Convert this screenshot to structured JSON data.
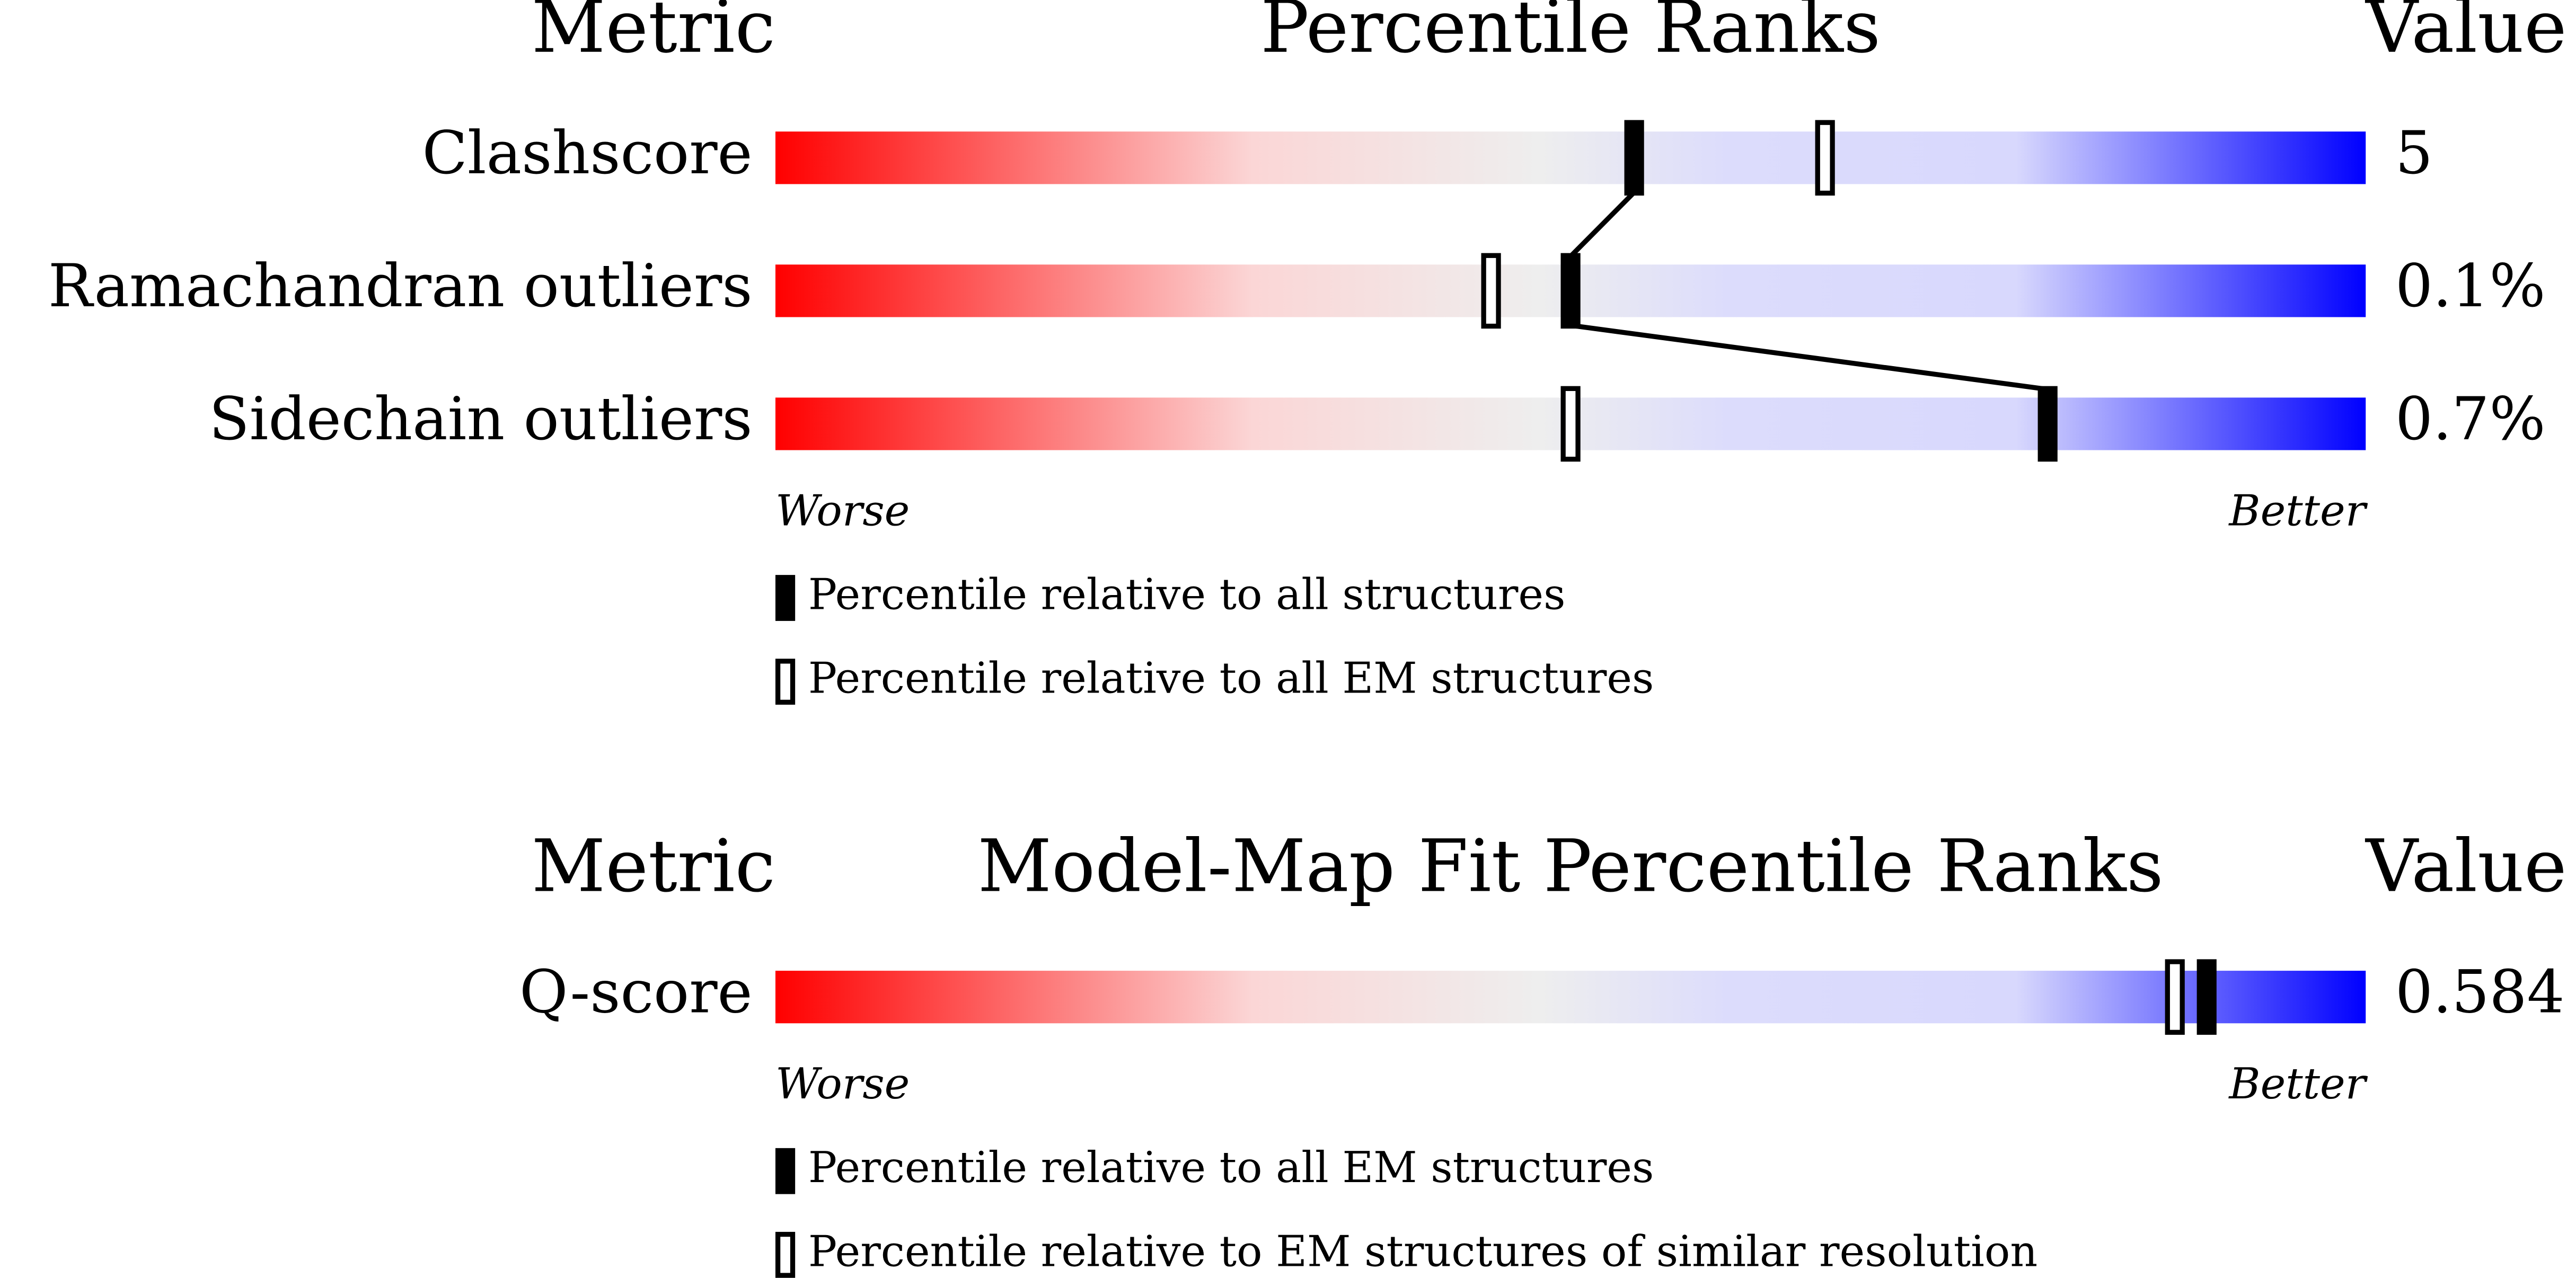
{
  "chart_data": [
    {
      "type": "slider",
      "header": {
        "metric": "Metric",
        "title": "Percentile Ranks",
        "value": "Value"
      },
      "categories": [
        "Clashscore",
        "Ramachandran outliers",
        "Sidechain outliers"
      ],
      "metric_values": [
        "5",
        "0.1%",
        "0.7%"
      ],
      "series": [
        {
          "name": "Percentile relative to all structures",
          "style": "filled",
          "connect": true,
          "color": "#000000",
          "values": [
            54,
            50,
            80
          ]
        },
        {
          "name": "Percentile relative to all EM structures",
          "style": "open",
          "connect": false,
          "color": "#000000",
          "values": [
            66,
            45,
            50
          ]
        }
      ],
      "xlim": [
        0,
        100
      ],
      "worse": "Worse",
      "better": "Better",
      "gradient": [
        "#ff0000",
        "#fbd6d6",
        "#eeeeee",
        "#dcdcfc",
        "#d8d8fd",
        "#0000ff"
      ]
    },
    {
      "type": "slider",
      "header": {
        "metric": "Metric",
        "title": "Model-Map Fit Percentile Ranks",
        "value": "Value"
      },
      "categories": [
        "Q-score"
      ],
      "metric_values": [
        "0.584"
      ],
      "series": [
        {
          "name": "Percentile relative to all EM structures",
          "style": "filled",
          "connect": true,
          "color": "#000000",
          "values": [
            90
          ]
        },
        {
          "name": "Percentile relative to EM structures of similar resolution",
          "style": "open",
          "connect": false,
          "color": "#000000",
          "values": [
            88
          ]
        }
      ],
      "xlim": [
        0,
        100
      ],
      "worse": "Worse",
      "better": "Better",
      "gradient": [
        "#ff0000",
        "#fbd6d6",
        "#eeeeee",
        "#dcdcfc",
        "#d8d8fd",
        "#0000ff"
      ]
    }
  ]
}
